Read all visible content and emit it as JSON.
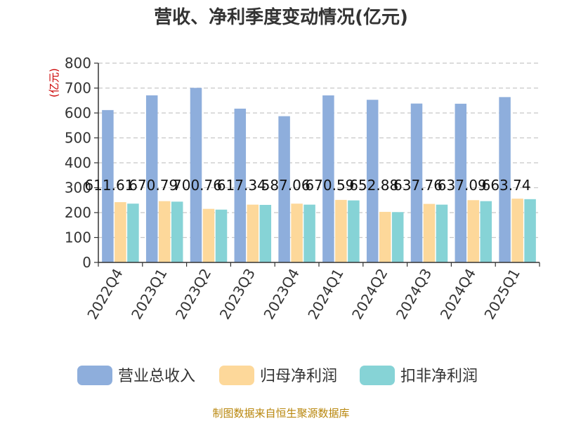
{
  "chart_data": {
    "type": "bar",
    "title": "营收、净利季度变动情况(亿元)",
    "ylabel": "(亿元)",
    "ylim": [
      0,
      800
    ],
    "yticks": [
      0,
      100,
      200,
      300,
      400,
      500,
      600,
      700,
      800
    ],
    "grid": true,
    "legend_position": "bottom",
    "categories": [
      "2022Q4",
      "2023Q1",
      "2023Q2",
      "2023Q3",
      "2023Q4",
      "2024Q1",
      "2024Q2",
      "2024Q3",
      "2024Q4",
      "2025Q1"
    ],
    "series": [
      {
        "name": "营业总收入",
        "color": "#8eaedc",
        "values": [
          611.61,
          670.79,
          700.76,
          617.34,
          587.06,
          670.59,
          652.88,
          637.76,
          637.09,
          663.74
        ],
        "labels": [
          "611.61",
          "670.79",
          "700.76",
          "617.34",
          "587.06",
          "670.59",
          "652.88",
          "637.76",
          "637.09",
          "663.74"
        ]
      },
      {
        "name": "归母净利润",
        "color": "#fdd89a",
        "values": [
          242,
          246,
          215,
          232,
          236,
          251,
          203,
          235,
          250,
          256
        ]
      },
      {
        "name": "扣非净利润",
        "color": "#86d3d6",
        "values": [
          236,
          244,
          212,
          231,
          232,
          249,
          202,
          232,
          246,
          254
        ]
      }
    ],
    "source": "制图数据来自恒生聚源数据库"
  }
}
